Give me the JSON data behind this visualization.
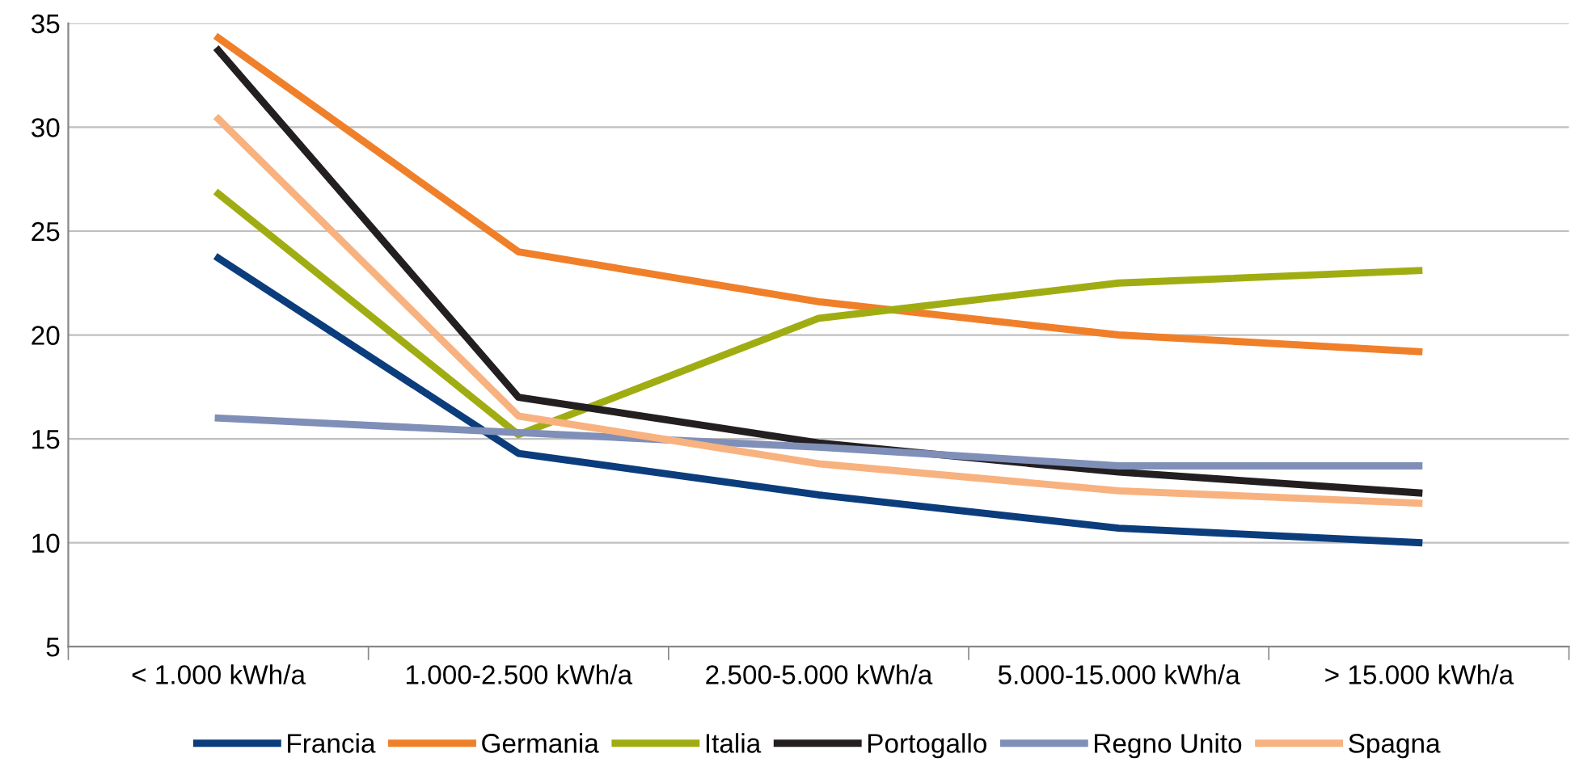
{
  "chart_data": {
    "type": "line",
    "categories": [
      "< 1.000 kWh/a",
      "1.000-2.500 kWh/a",
      "2.500-5.000 kWh/a",
      "5.000-15.000 kWh/a",
      "> 15.000 kWh/a"
    ],
    "series": [
      {
        "name": "Francia",
        "color": "#0b3d7d",
        "values": [
          23.7,
          14.3,
          12.3,
          10.7,
          10.0
        ]
      },
      {
        "name": "Germania",
        "color": "#f07f2a",
        "values": [
          34.3,
          24.0,
          21.6,
          20.0,
          19.2
        ]
      },
      {
        "name": "Italia",
        "color": "#a0ad12",
        "values": [
          26.8,
          15.2,
          20.8,
          22.5,
          23.1
        ]
      },
      {
        "name": "Portogallo",
        "color": "#231f20",
        "values": [
          33.7,
          17.0,
          14.8,
          13.4,
          12.4
        ]
      },
      {
        "name": "Regno Unito",
        "color": "#7f8fb8",
        "values": [
          16.0,
          15.3,
          14.6,
          13.7,
          13.7
        ]
      },
      {
        "name": "Spagna",
        "color": "#f8b27f",
        "values": [
          30.4,
          16.1,
          13.8,
          12.5,
          11.9
        ]
      }
    ],
    "ylim": [
      5,
      35
    ],
    "yticks": [
      5,
      10,
      15,
      20,
      25,
      30,
      35
    ],
    "grid": "y",
    "legend": "bottom",
    "marker": "none",
    "line_style": "solid"
  }
}
